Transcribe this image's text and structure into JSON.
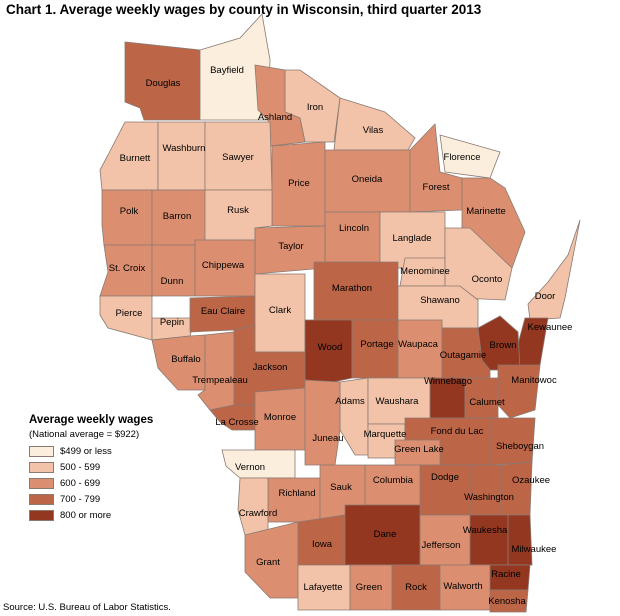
{
  "title": "Chart 1. Average weekly wages by county in Wisconsin, third quarter 2013",
  "legend": {
    "title": "Average weekly wages",
    "subtitle": "(National average = $922)",
    "classes": [
      {
        "label": "$499 or less",
        "color": "#fbeedd"
      },
      {
        "label": "500 - 599",
        "color": "#f2c3a8"
      },
      {
        "label": "600 - 699",
        "color": "#dc8f70"
      },
      {
        "label": "700 - 799",
        "color": "#bd6547"
      },
      {
        "label": "800 or more",
        "color": "#943721"
      }
    ]
  },
  "source": "Source: U.S. Bureau of Labor Statistics.",
  "counties": [
    {
      "name": "Douglas",
      "class": 3
    },
    {
      "name": "Bayfield",
      "class": 0
    },
    {
      "name": "Iron",
      "class": 1
    },
    {
      "name": "Ashland",
      "class": 2
    },
    {
      "name": "Vilas",
      "class": 1
    },
    {
      "name": "Florence",
      "class": 0
    },
    {
      "name": "Burnett",
      "class": 1
    },
    {
      "name": "Washburn",
      "class": 1
    },
    {
      "name": "Sawyer",
      "class": 1
    },
    {
      "name": "Price",
      "class": 2
    },
    {
      "name": "Oneida",
      "class": 2
    },
    {
      "name": "Forest",
      "class": 2
    },
    {
      "name": "Marinette",
      "class": 2
    },
    {
      "name": "Polk",
      "class": 2
    },
    {
      "name": "Barron",
      "class": 2
    },
    {
      "name": "Rusk",
      "class": 1
    },
    {
      "name": "Lincoln",
      "class": 2
    },
    {
      "name": "Langlade",
      "class": 1
    },
    {
      "name": "Taylor",
      "class": 2
    },
    {
      "name": "Menominee",
      "class": 1
    },
    {
      "name": "Oconto",
      "class": 1
    },
    {
      "name": "St. Croix",
      "class": 2
    },
    {
      "name": "Dunn",
      "class": 2
    },
    {
      "name": "Chippewa",
      "class": 2
    },
    {
      "name": "Marathon",
      "class": 3
    },
    {
      "name": "Shawano",
      "class": 1
    },
    {
      "name": "Door",
      "class": 1
    },
    {
      "name": "Pierce",
      "class": 1
    },
    {
      "name": "Pepin",
      "class": 1
    },
    {
      "name": "Eau Claire",
      "class": 3
    },
    {
      "name": "Clark",
      "class": 1
    },
    {
      "name": "Kewaunee",
      "class": 4
    },
    {
      "name": "Wood",
      "class": 4
    },
    {
      "name": "Portage",
      "class": 3
    },
    {
      "name": "Waupaca",
      "class": 2
    },
    {
      "name": "Outagamie",
      "class": 3
    },
    {
      "name": "Brown",
      "class": 4
    },
    {
      "name": "Buffalo",
      "class": 2
    },
    {
      "name": "Trempealeau",
      "class": 2
    },
    {
      "name": "Jackson",
      "class": 3
    },
    {
      "name": "Manitowoc",
      "class": 3
    },
    {
      "name": "Winnebago",
      "class": 4
    },
    {
      "name": "Calumet",
      "class": 3
    },
    {
      "name": "Adams",
      "class": 1
    },
    {
      "name": "Waushara",
      "class": 1
    },
    {
      "name": "La Crosse",
      "class": 3
    },
    {
      "name": "Monroe",
      "class": 2
    },
    {
      "name": "Juneau",
      "class": 2
    },
    {
      "name": "Marquette",
      "class": 1
    },
    {
      "name": "Fond du Lac",
      "class": 3
    },
    {
      "name": "Green Lake",
      "class": 2
    },
    {
      "name": "Sheboygan",
      "class": 3
    },
    {
      "name": "Vernon",
      "class": 0
    },
    {
      "name": "Richland",
      "class": 2
    },
    {
      "name": "Sauk",
      "class": 2
    },
    {
      "name": "Columbia",
      "class": 2
    },
    {
      "name": "Dodge",
      "class": 3
    },
    {
      "name": "Washington",
      "class": 3
    },
    {
      "name": "Ozaukee",
      "class": 3
    },
    {
      "name": "Crawford",
      "class": 1
    },
    {
      "name": "Dane",
      "class": 4
    },
    {
      "name": "Jefferson",
      "class": 2
    },
    {
      "name": "Waukesha",
      "class": 4
    },
    {
      "name": "Milwaukee",
      "class": 4
    },
    {
      "name": "Grant",
      "class": 2
    },
    {
      "name": "Iowa",
      "class": 3
    },
    {
      "name": "Lafayette",
      "class": 1
    },
    {
      "name": "Green",
      "class": 2
    },
    {
      "name": "Rock",
      "class": 3
    },
    {
      "name": "Walworth",
      "class": 2
    },
    {
      "name": "Racine",
      "class": 4
    },
    {
      "name": "Kenosha",
      "class": 3
    }
  ]
}
